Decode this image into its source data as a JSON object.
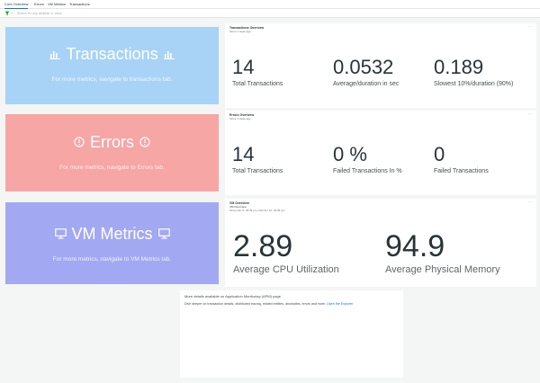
{
  "tabs": [
    {
      "label": "Curb Overview",
      "active": true
    },
    {
      "label": "Errors",
      "active": false
    },
    {
      "label": "VM Metrics",
      "active": false
    },
    {
      "label": "Transactions",
      "active": false
    }
  ],
  "filter": {
    "placeholder": "Search for any attribute or value",
    "icon": "filter-icon",
    "caret": "⌄"
  },
  "banners": {
    "transactions": {
      "title": "Transactions",
      "subtitle": "For more metrics, navigate to transactions tab.",
      "icon": "bar-chart-icon",
      "color": "#a8d3f6"
    },
    "errors": {
      "title": "Errors",
      "subtitle": "For more metrics, navigate to Errors tab.",
      "icon": "error-circle-icon",
      "color": "#f6a6a4"
    },
    "vm": {
      "title": "VM Metrics",
      "subtitle": "For more metrics, navigate to VM Metrics tab.",
      "icon": "monitor-icon",
      "color": "#a2a9f2"
    }
  },
  "cards": {
    "transactions": {
      "title": "Transactions Overview",
      "subtitle": "Since 1 week ago",
      "menu": "···",
      "metrics": [
        {
          "value": "14",
          "label": "Total Transactions"
        },
        {
          "value": "0.0532",
          "label": "Average/duration in sec"
        },
        {
          "value": "0.189",
          "label": "Slowest 10%/duration (90%)"
        }
      ]
    },
    "errors": {
      "title": "Errors Overview",
      "subtitle": "Since 1 week ago",
      "menu": "···",
      "metrics": [
        {
          "value": "14",
          "label": "Total Transactions"
        },
        {
          "value": "0 %",
          "label": "Failed Transactions In %"
        },
        {
          "value": "0",
          "label": "Failed Transactions"
        }
      ]
    },
    "vm": {
      "title": "VM Overview",
      "subtitle_1": "VM Overview",
      "subtitle_2": "Since Nov 5, 03:39 pm until Nov 12, 03:39 pm",
      "menu": "···",
      "metrics": [
        {
          "value": "2.89",
          "label": "Average CPU Utilization"
        },
        {
          "value": "94.9",
          "label": "Average Physical Memory"
        }
      ]
    }
  },
  "apm": {
    "line1": "More details available on Application Monitoring (APM) page.",
    "line2": "Dive deeper on transaction details, distributed tracing, related entities, anomalies, errors and more.",
    "link": "Open the Explorer"
  }
}
